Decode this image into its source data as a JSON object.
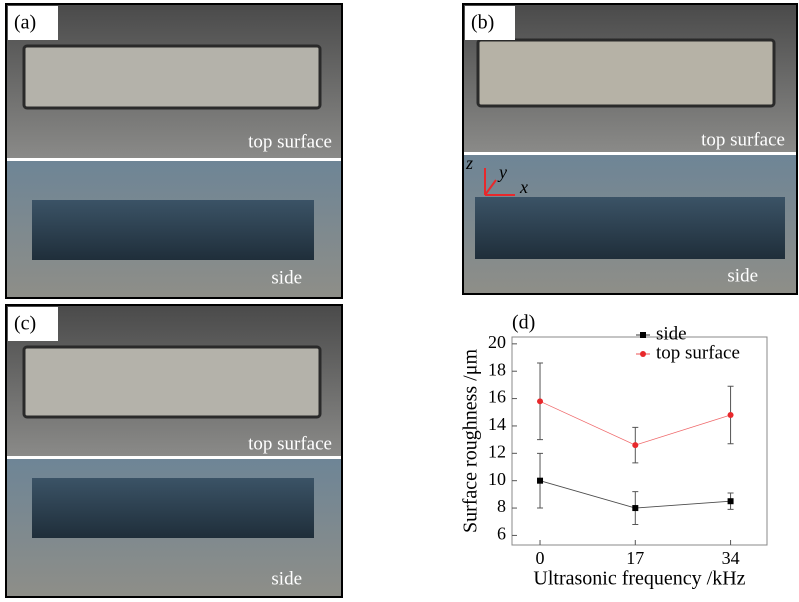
{
  "panels": [
    {
      "label": "(a)",
      "top": "top surface",
      "side": "side"
    },
    {
      "label": "(b)",
      "top": "top surface",
      "side": "side",
      "axes": {
        "z": "z",
        "y": "y",
        "x": "x"
      }
    },
    {
      "label": "(c)",
      "top": "top surface",
      "side": "side"
    }
  ],
  "chart_data": {
    "type": "scatter",
    "label": "(d)",
    "xlabel": "Ultrasonic frequency /kHz",
    "ylabel": "Surface roughness /μm",
    "x": [
      0,
      17,
      34
    ],
    "series": [
      {
        "name": "side",
        "color": "#000000",
        "marker": "square",
        "values": [
          10,
          8,
          8.5
        ],
        "errors": [
          2,
          1.2,
          0.6
        ]
      },
      {
        "name": "top surface",
        "color": "#e8282b",
        "marker": "circle",
        "values": [
          15.8,
          12.6,
          14.8
        ],
        "errors": [
          2.8,
          1.3,
          2.1
        ]
      }
    ],
    "xlim": [
      -5,
      40.5
    ],
    "ylim": [
      5.3,
      20.5
    ],
    "xticks": [
      0,
      17,
      34
    ],
    "yticks": [
      6,
      8,
      10,
      12,
      14,
      16,
      18,
      20
    ],
    "legend": "upper right"
  }
}
